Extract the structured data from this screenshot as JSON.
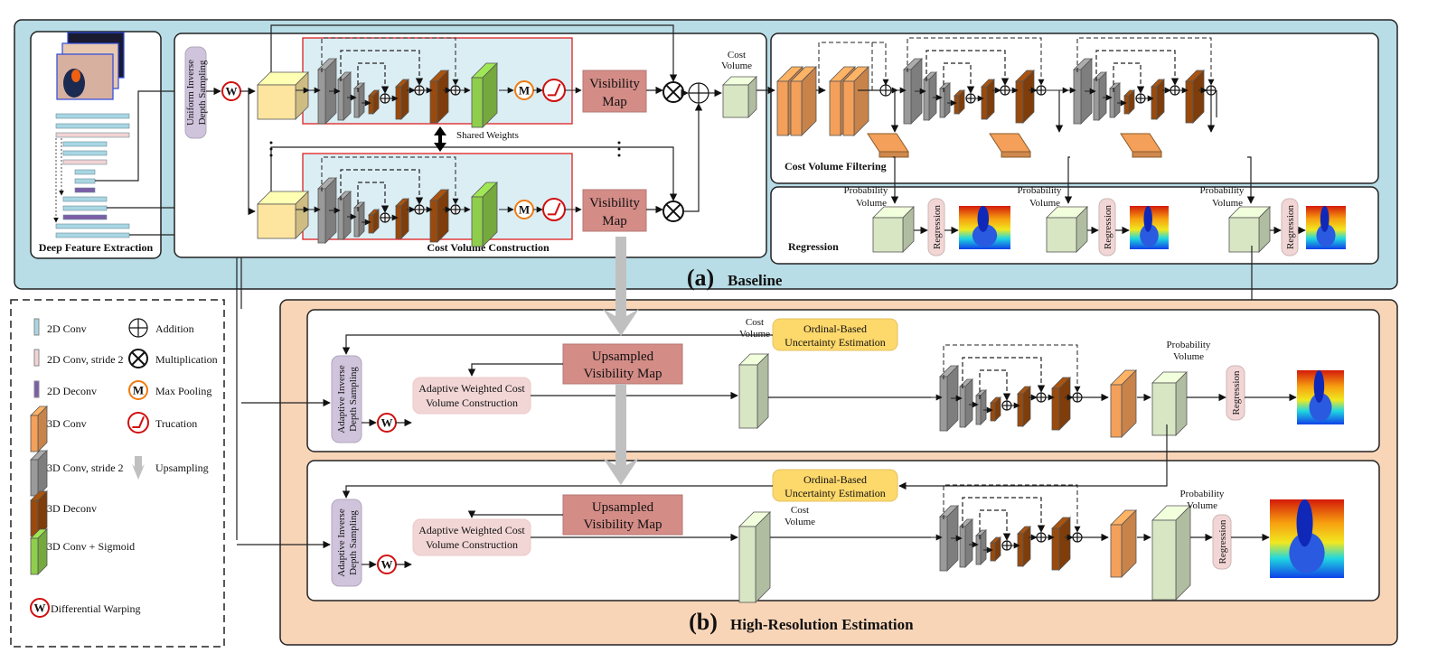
{
  "colors": {
    "baseline_bg": "#b8dde6",
    "highres_bg": "#f9d5b8",
    "conv2d": "#a9d6e3",
    "conv2d_stride2": "#f2d4d4",
    "deconv2d": "#7b5ea7",
    "conv3d": "#f4a05a",
    "conv3d_stride2": "#9a9a9a",
    "deconv3d": "#9a4a0c",
    "conv3d_sigmoid": "#8fce4c",
    "visibility_map": "#d48c87",
    "sampling": "#cfc4dc",
    "regression": "#f2d6d6",
    "ordinal": "#fdd86b",
    "volume": "#d8e6c4",
    "cost_feature": "#fde5a0",
    "warp_red": "#d01010",
    "maxpool_orange": "#f07a10"
  },
  "baseline": {
    "label_a": "(a)",
    "title": "Baseline"
  },
  "feature": {
    "title": "Deep Feature Extraction"
  },
  "construction": {
    "sampling_line1": "Uniform Inverse",
    "sampling_line2": "Depth Sampling",
    "warp": "W",
    "max_pool": "M",
    "vis_line1": "Visibility",
    "vis_line2": "Map",
    "shared": "Shared Weights",
    "title": "Cost Volume Construction",
    "cost_line1": "Cost",
    "cost_line2": "Volume"
  },
  "filtering": {
    "title": "Cost Volume Filtering"
  },
  "regression": {
    "title": "Regression",
    "prob_line1": "Probability",
    "prob_line2": "Volume",
    "reg": "Regression"
  },
  "highres": {
    "label_b": "(b)",
    "title": "High-Resolution Estimation",
    "ordinal_line1": "Ordinal-Based",
    "ordinal_line2": "Uncertainty Estimation",
    "sampling_line1": "Adaptive Inverse",
    "sampling_line2": "Depth Sampling",
    "awc_line1": "Adaptive Weighted Cost",
    "awc_line2": "Volume Construction",
    "ups_line1": "Upsampled",
    "ups_line2": "Visibility Map",
    "cost_line1": "Cost",
    "cost_line2": "Volume",
    "prob_line1": "Probability",
    "prob_line2": "Volume",
    "reg": "Regression",
    "warp": "W"
  },
  "legend": {
    "left": [
      {
        "label": "2D Conv",
        "icon": "2d-conv"
      },
      {
        "label": "2D Conv, stride 2",
        "icon": "2d-conv-stride2"
      },
      {
        "label": "2D Deconv",
        "icon": "2d-deconv"
      },
      {
        "label": "3D Conv",
        "icon": "3d-conv"
      },
      {
        "label": "3D Conv, stride 2",
        "icon": "3d-conv-stride2"
      },
      {
        "label": "3D Deconv",
        "icon": "3d-deconv"
      },
      {
        "label": "3D Conv + Sigmoid",
        "icon": "3d-conv-sigmoid"
      },
      {
        "label": "Differential Warping",
        "icon": "warp",
        "glyph": "W"
      }
    ],
    "right": [
      {
        "label": "Addition",
        "icon": "addition"
      },
      {
        "label": "Multiplication",
        "icon": "multiplication"
      },
      {
        "label": "Max Pooling",
        "icon": "max-pooling",
        "glyph": "M"
      },
      {
        "label": "Trucation",
        "icon": "truncation"
      },
      {
        "label": "Upsampling",
        "icon": "upsampling"
      }
    ]
  }
}
